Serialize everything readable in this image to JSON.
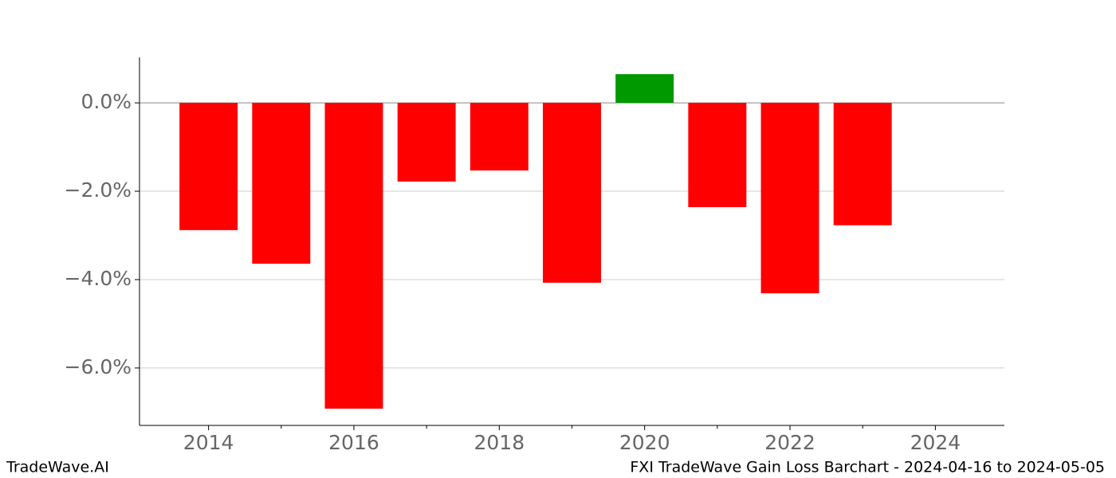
{
  "chart_data": {
    "type": "bar",
    "x": [
      2014,
      2015,
      2016,
      2017,
      2018,
      2019,
      2020,
      2021,
      2022,
      2023
    ],
    "values": [
      -2.88,
      -3.64,
      -6.92,
      -1.78,
      -1.53,
      -4.07,
      0.65,
      -2.36,
      -4.31,
      -2.77
    ],
    "colors": [
      "#ff0000",
      "#ff0000",
      "#ff0000",
      "#ff0000",
      "#ff0000",
      "#ff0000",
      "#009900",
      "#ff0000",
      "#ff0000",
      "#ff0000"
    ],
    "bar_width": 0.8,
    "xlim": [
      2013.05,
      2024.95
    ],
    "xticks": [
      2014,
      2016,
      2018,
      2020,
      2022,
      2024
    ],
    "xminorticks": [
      2015,
      2017,
      2019,
      2021,
      2023
    ],
    "ylim": [
      -7.3,
      1.03
    ],
    "yticks": [
      {
        "value": 0,
        "label": "0.0%"
      },
      {
        "value": -2,
        "label": "−2.0%"
      },
      {
        "value": -4,
        "label": "−4.0%"
      },
      {
        "value": -6,
        "label": "−6.0%"
      }
    ],
    "grid": true,
    "watermark": "TradeWave.AI",
    "footer": "FXI TradeWave Gain Loss Barchart - 2024-04-16 to 2024-05-05"
  }
}
